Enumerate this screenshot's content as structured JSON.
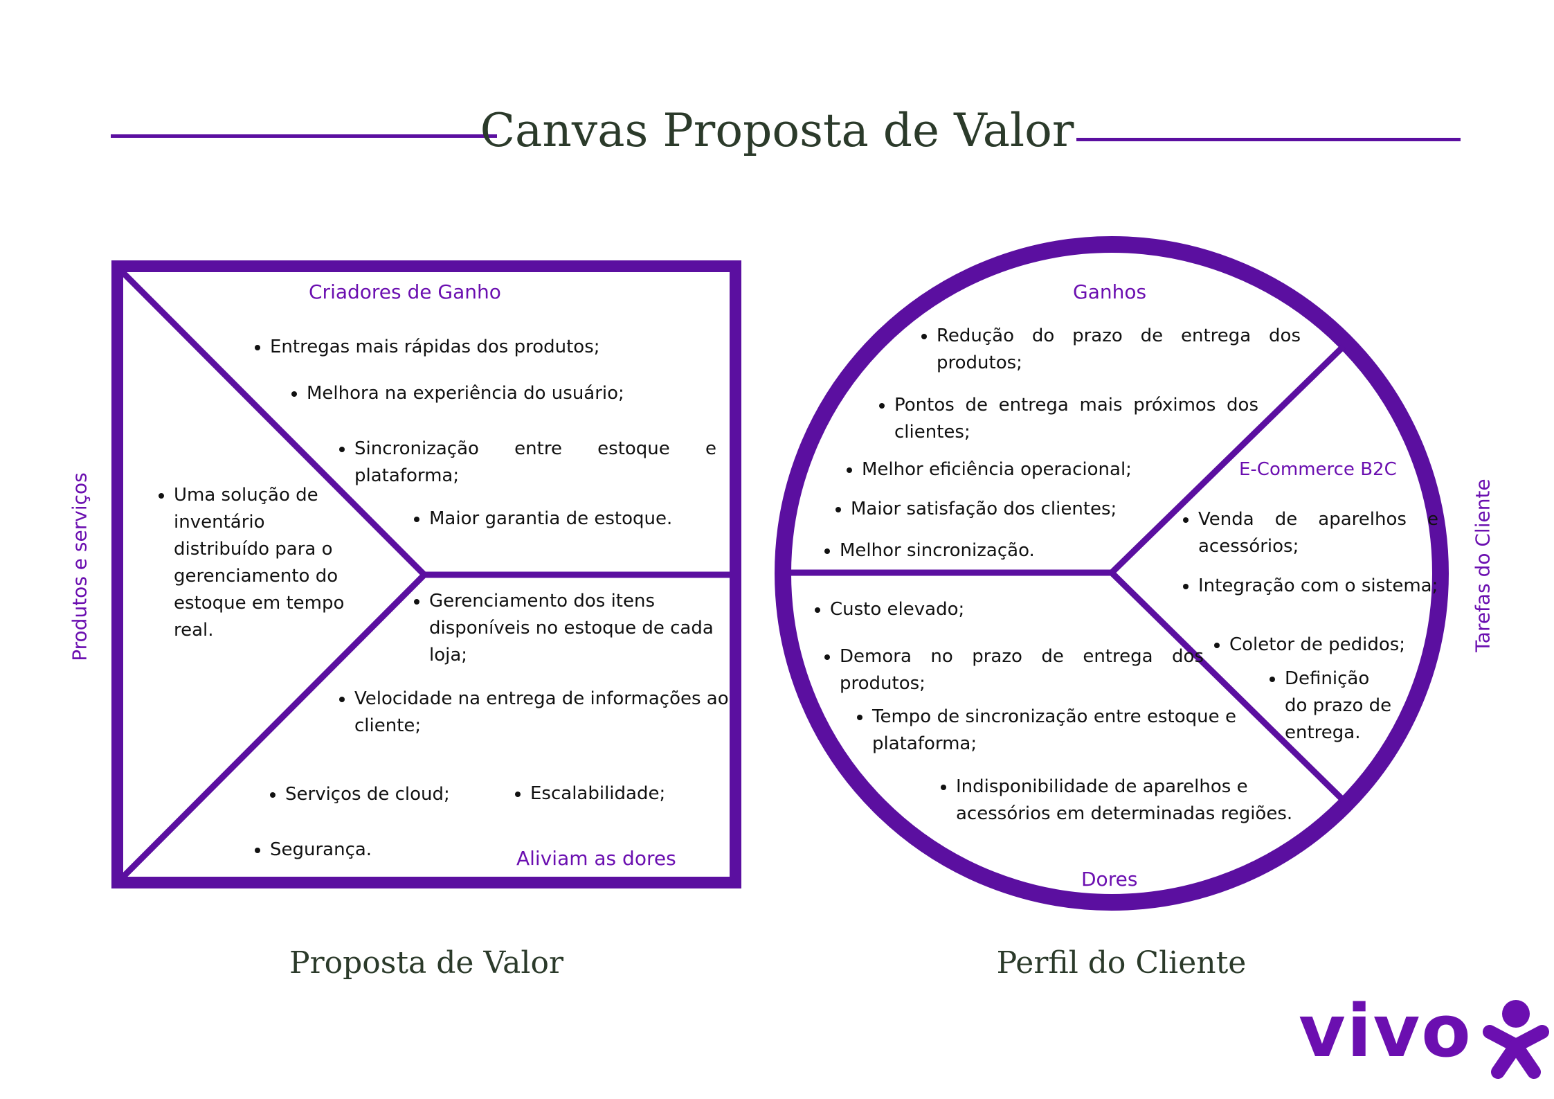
{
  "title": "Canvas Proposta de Valor",
  "colors": {
    "accent": "#5b0fa0",
    "title_text": "#2b3a2a"
  },
  "value_proposition": {
    "caption": "Proposta de Valor",
    "side_label": "Produtos e serviços",
    "gain_creators": {
      "title": "Criadores de Ganho",
      "items": [
        "Entregas mais rápidas dos produtos;",
        "Melhora na experiência do usuário;",
        "Sincronização entre estoque e plataforma;",
        "Maior garantia de estoque."
      ]
    },
    "products_services": {
      "items": [
        "Uma solução de inventário distribuído para o gerenciamento do estoque em tempo real."
      ]
    },
    "pain_relievers": {
      "title": "Aliviam as dores",
      "items": [
        "Gerenciamento dos itens disponíveis no estoque de cada loja;",
        "Velocidade na entrega de informações ao cliente;",
        "Serviços de cloud;",
        "Escalabilidade;",
        "Segurança."
      ]
    }
  },
  "customer_profile": {
    "caption": "Perfil do Cliente",
    "side_label": "Tarefas do Cliente",
    "gains": {
      "title": "Ganhos",
      "items": [
        "Redução do prazo de entrega dos produtos;",
        "Pontos de entrega mais próximos dos clientes;",
        "Melhor eficiência operacional;",
        "Maior satisfação dos clientes;",
        "Melhor sincronização."
      ]
    },
    "jobs": {
      "title": "E-Commerce B2C",
      "items": [
        "Venda de aparelhos e acessórios;",
        "Integração com o sistema;",
        "Coletor de pedidos;",
        "Definição do prazo de entrega."
      ]
    },
    "pains": {
      "title": "Dores",
      "items": [
        "Custo elevado;",
        "Demora no prazo de entrega dos produtos;",
        "Tempo de sincronização entre estoque e plataforma;",
        "Indisponibilidade de aparelhos e acessórios em determinadas regiões."
      ]
    }
  },
  "logo": {
    "text": "vivo"
  }
}
